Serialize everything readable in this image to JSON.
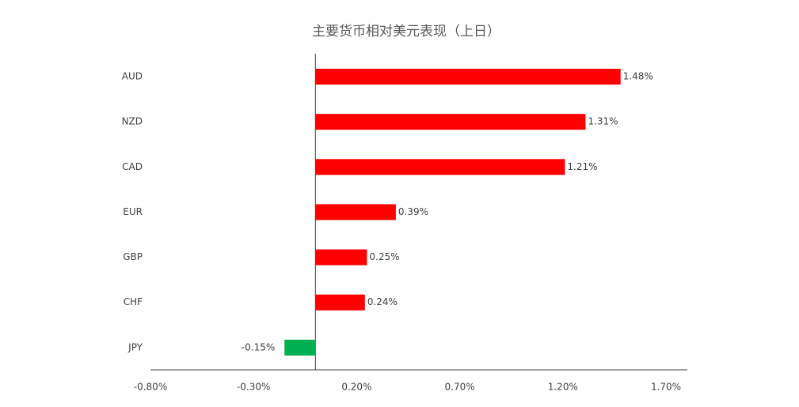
{
  "chart_data": {
    "type": "hbar",
    "title": "主要货币相对美元表现（上日）",
    "categories": [
      "AUD",
      "NZD",
      "CAD",
      "EUR",
      "GBP",
      "CHF",
      "JPY"
    ],
    "values": [
      1.48,
      1.31,
      1.21,
      0.39,
      0.25,
      0.24,
      -0.15
    ],
    "value_labels": [
      "1.48%",
      "1.31%",
      "1.21%",
      "0.39%",
      "0.25%",
      "0.24%",
      "-0.15%"
    ],
    "colors": [
      "#ff0000",
      "#ff0000",
      "#ff0000",
      "#ff0000",
      "#ff0000",
      "#ff0000",
      "#00b050"
    ],
    "xlim": [
      -0.8,
      1.7
    ],
    "xticks": [
      {
        "value": -0.8,
        "label": "-0.80%"
      },
      {
        "value": -0.3,
        "label": "-0.30%"
      },
      {
        "value": 0.2,
        "label": "0.20%"
      },
      {
        "value": 0.7,
        "label": "0.70%"
      },
      {
        "value": 1.2,
        "label": "1.20%"
      },
      {
        "value": 1.7,
        "label": "1.70%"
      }
    ],
    "grid": false
  }
}
